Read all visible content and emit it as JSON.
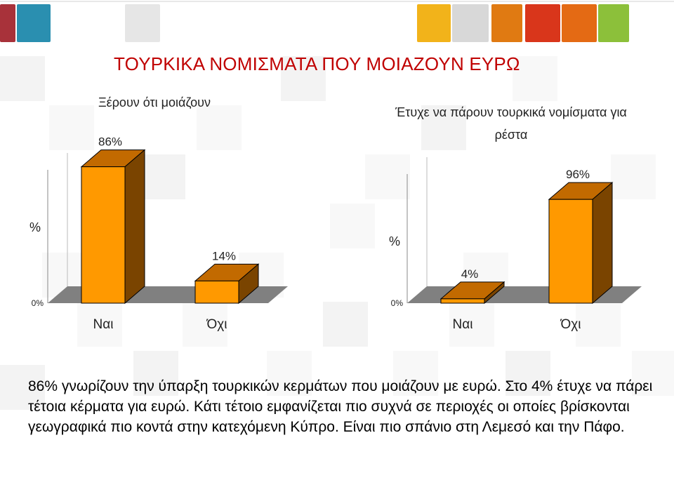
{
  "slide": {
    "title": "ΤΟΥΡΚΙΚΑ ΝΟΜΙΣΜΑΤΑ ΠΟΥ ΜΟΙΑΖΟΥΝ ΕΥΡΩ",
    "caption": "86% γνωρίζουν την ύπαρξη τουρκικών κερμάτων που μοιάζουν με ευρώ. Στο 4% έτυχε να πάρει τέτοια κέρματα για ευρώ. Κάτι τέτοιο εμφανίζεται πιο συχνά σε περιοχές οι οποίες βρίσκονται γεωγραφικά πιο κοντά στην κατεχόμενη Κύπρο. Είναι πιο σπάνιο στη Λεμεσό και την Πάφο.",
    "colors": {
      "title": "#c00000",
      "bar_front": "#ff9900",
      "bar_side": "#7a4400",
      "bar_top": "#c26a00",
      "floor": "#808080"
    },
    "decor_colors": [
      "#a8323a",
      "#2a8fb0",
      "#f2b31a",
      "#e07a12",
      "#d9361b",
      "#e46a14",
      "#8cc03a"
    ]
  },
  "chart_data": [
    {
      "type": "bar",
      "title": "Ξέρουν ότι μοιάζουν",
      "categories": [
        "Ναι",
        "Όχι"
      ],
      "values": [
        86,
        14
      ],
      "data_labels": [
        "86%",
        "14%"
      ],
      "ylabel": "%",
      "ytick_label": "0%",
      "ylim": [
        0,
        100
      ],
      "style": "3d"
    },
    {
      "type": "bar",
      "title": "Έτυχε να πάρουν τουρκικά νομίσματα για ρέστα",
      "title_lines": [
        "Έτυχε να πάρουν τουρκικά νομίσματα για",
        "ρέστα"
      ],
      "categories": [
        "Ναι",
        "Όχι"
      ],
      "values": [
        4,
        96
      ],
      "data_labels": [
        "4%",
        "96%"
      ],
      "ylabel": "%",
      "ytick_label": "0%",
      "ylim": [
        0,
        100
      ],
      "style": "3d"
    }
  ]
}
